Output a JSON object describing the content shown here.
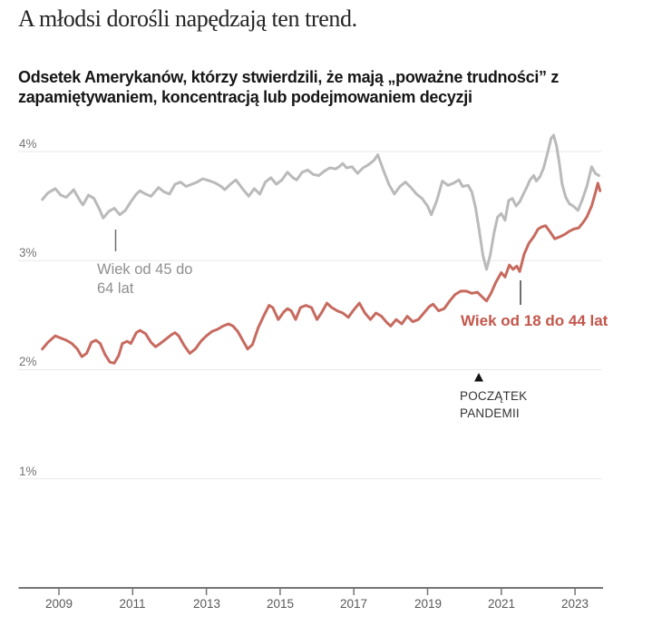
{
  "chart_data": {
    "type": "line",
    "title": "A młodsi dorośli napędzają ten trend.",
    "subtitle": "Odsetek Amerykanów, którzy stwierdzili, że mają „poważne trudności” z zapamiętywaniem, koncentracją lub podejmowaniem decyzji",
    "y_axis": {
      "unit": "%",
      "range": [
        0,
        4.3
      ],
      "grid": true,
      "ticks": [
        {
          "value": 4,
          "label": "4%"
        },
        {
          "value": 3,
          "label": "3%"
        },
        {
          "value": 2,
          "label": "2%"
        },
        {
          "value": 1,
          "label": "1%"
        }
      ]
    },
    "x_axis": {
      "range": [
        2008.4,
        2023.8
      ],
      "ticks": [
        {
          "value": 2009,
          "label": "2009"
        },
        {
          "value": 2011,
          "label": "2011"
        },
        {
          "value": 2013,
          "label": "2013"
        },
        {
          "value": 2015,
          "label": "2015"
        },
        {
          "value": 2017,
          "label": "2017"
        },
        {
          "value": 2019,
          "label": "2019"
        },
        {
          "value": 2021,
          "label": "2021"
        },
        {
          "value": 2023,
          "label": "2023"
        }
      ]
    },
    "colors": {
      "series_45_64": "#bababa",
      "series_18_44": "#c76a5f",
      "label_45_64": "#8f8f8f",
      "label_18_44": "#c2574c",
      "grid": "#e9e9e9",
      "axis": "#757575",
      "annotation": "#333333"
    },
    "series": [
      {
        "name": "Wiek od 45 do 64 lat",
        "color": "#bababa",
        "points": [
          [
            2008.55,
            3.56
          ],
          [
            2008.7,
            3.62
          ],
          [
            2008.9,
            3.66
          ],
          [
            2009.05,
            3.6
          ],
          [
            2009.2,
            3.58
          ],
          [
            2009.4,
            3.65
          ],
          [
            2009.55,
            3.56
          ],
          [
            2009.65,
            3.51
          ],
          [
            2009.8,
            3.6
          ],
          [
            2009.95,
            3.57
          ],
          [
            2010.1,
            3.47
          ],
          [
            2010.2,
            3.39
          ],
          [
            2010.35,
            3.45
          ],
          [
            2010.5,
            3.48
          ],
          [
            2010.65,
            3.42
          ],
          [
            2010.8,
            3.46
          ],
          [
            2010.95,
            3.54
          ],
          [
            2011.1,
            3.61
          ],
          [
            2011.2,
            3.64
          ],
          [
            2011.35,
            3.61
          ],
          [
            2011.5,
            3.59
          ],
          [
            2011.7,
            3.67
          ],
          [
            2011.85,
            3.63
          ],
          [
            2012.0,
            3.61
          ],
          [
            2012.15,
            3.7
          ],
          [
            2012.3,
            3.72
          ],
          [
            2012.45,
            3.68
          ],
          [
            2012.6,
            3.7
          ],
          [
            2012.75,
            3.72
          ],
          [
            2012.9,
            3.75
          ],
          [
            2013.1,
            3.73
          ],
          [
            2013.25,
            3.71
          ],
          [
            2013.4,
            3.68
          ],
          [
            2013.5,
            3.65
          ],
          [
            2013.65,
            3.7
          ],
          [
            2013.8,
            3.74
          ],
          [
            2014.0,
            3.65
          ],
          [
            2014.15,
            3.59
          ],
          [
            2014.3,
            3.66
          ],
          [
            2014.45,
            3.61
          ],
          [
            2014.6,
            3.72
          ],
          [
            2014.75,
            3.76
          ],
          [
            2014.9,
            3.7
          ],
          [
            2015.05,
            3.74
          ],
          [
            2015.2,
            3.81
          ],
          [
            2015.35,
            3.76
          ],
          [
            2015.45,
            3.74
          ],
          [
            2015.6,
            3.81
          ],
          [
            2015.75,
            3.83
          ],
          [
            2015.9,
            3.79
          ],
          [
            2016.05,
            3.78
          ],
          [
            2016.2,
            3.82
          ],
          [
            2016.35,
            3.85
          ],
          [
            2016.5,
            3.84
          ],
          [
            2016.6,
            3.86
          ],
          [
            2016.7,
            3.89
          ],
          [
            2016.8,
            3.85
          ],
          [
            2016.95,
            3.86
          ],
          [
            2017.1,
            3.8
          ],
          [
            2017.25,
            3.85
          ],
          [
            2017.4,
            3.88
          ],
          [
            2017.55,
            3.92
          ],
          [
            2017.65,
            3.97
          ],
          [
            2017.8,
            3.83
          ],
          [
            2017.95,
            3.7
          ],
          [
            2018.1,
            3.61
          ],
          [
            2018.25,
            3.68
          ],
          [
            2018.4,
            3.72
          ],
          [
            2018.55,
            3.67
          ],
          [
            2018.7,
            3.61
          ],
          [
            2018.85,
            3.57
          ],
          [
            2019.0,
            3.5
          ],
          [
            2019.1,
            3.42
          ],
          [
            2019.25,
            3.55
          ],
          [
            2019.4,
            3.73
          ],
          [
            2019.55,
            3.69
          ],
          [
            2019.7,
            3.71
          ],
          [
            2019.85,
            3.74
          ],
          [
            2019.95,
            3.68
          ],
          [
            2020.1,
            3.69
          ],
          [
            2020.2,
            3.63
          ],
          [
            2020.3,
            3.49
          ],
          [
            2020.4,
            3.28
          ],
          [
            2020.5,
            3.05
          ],
          [
            2020.6,
            2.92
          ],
          [
            2020.7,
            3.05
          ],
          [
            2020.8,
            3.25
          ],
          [
            2020.9,
            3.4
          ],
          [
            2021.0,
            3.43
          ],
          [
            2021.1,
            3.37
          ],
          [
            2021.2,
            3.55
          ],
          [
            2021.3,
            3.57
          ],
          [
            2021.4,
            3.5
          ],
          [
            2021.5,
            3.54
          ],
          [
            2021.6,
            3.61
          ],
          [
            2021.7,
            3.68
          ],
          [
            2021.78,
            3.74
          ],
          [
            2021.88,
            3.78
          ],
          [
            2021.95,
            3.73
          ],
          [
            2022.05,
            3.77
          ],
          [
            2022.15,
            3.85
          ],
          [
            2022.25,
            3.98
          ],
          [
            2022.35,
            4.12
          ],
          [
            2022.42,
            4.15
          ],
          [
            2022.5,
            4.05
          ],
          [
            2022.58,
            3.88
          ],
          [
            2022.65,
            3.7
          ],
          [
            2022.75,
            3.58
          ],
          [
            2022.85,
            3.52
          ],
          [
            2022.95,
            3.5
          ],
          [
            2023.08,
            3.46
          ],
          [
            2023.2,
            3.56
          ],
          [
            2023.32,
            3.68
          ],
          [
            2023.45,
            3.86
          ],
          [
            2023.55,
            3.8
          ],
          [
            2023.65,
            3.78
          ]
        ]
      },
      {
        "name": "Wiek od 18 do 44 lat",
        "color": "#c76a5f",
        "points": [
          [
            2008.55,
            2.19
          ],
          [
            2008.7,
            2.25
          ],
          [
            2008.9,
            2.31
          ],
          [
            2009.05,
            2.29
          ],
          [
            2009.2,
            2.27
          ],
          [
            2009.35,
            2.24
          ],
          [
            2009.5,
            2.19
          ],
          [
            2009.62,
            2.12
          ],
          [
            2009.75,
            2.15
          ],
          [
            2009.88,
            2.25
          ],
          [
            2010.0,
            2.27
          ],
          [
            2010.12,
            2.24
          ],
          [
            2010.25,
            2.14
          ],
          [
            2010.38,
            2.07
          ],
          [
            2010.5,
            2.06
          ],
          [
            2010.62,
            2.13
          ],
          [
            2010.72,
            2.24
          ],
          [
            2010.85,
            2.26
          ],
          [
            2010.95,
            2.24
          ],
          [
            2011.1,
            2.34
          ],
          [
            2011.2,
            2.36
          ],
          [
            2011.35,
            2.33
          ],
          [
            2011.5,
            2.25
          ],
          [
            2011.62,
            2.21
          ],
          [
            2011.75,
            2.24
          ],
          [
            2011.9,
            2.28
          ],
          [
            2012.05,
            2.32
          ],
          [
            2012.15,
            2.34
          ],
          [
            2012.25,
            2.31
          ],
          [
            2012.4,
            2.22
          ],
          [
            2012.55,
            2.15
          ],
          [
            2012.7,
            2.19
          ],
          [
            2012.85,
            2.26
          ],
          [
            2013.0,
            2.31
          ],
          [
            2013.15,
            2.35
          ],
          [
            2013.3,
            2.37
          ],
          [
            2013.45,
            2.4
          ],
          [
            2013.6,
            2.42
          ],
          [
            2013.72,
            2.4
          ],
          [
            2013.85,
            2.35
          ],
          [
            2014.0,
            2.26
          ],
          [
            2014.12,
            2.19
          ],
          [
            2014.25,
            2.23
          ],
          [
            2014.4,
            2.38
          ],
          [
            2014.55,
            2.49
          ],
          [
            2014.7,
            2.59
          ],
          [
            2014.8,
            2.57
          ],
          [
            2014.95,
            2.46
          ],
          [
            2015.1,
            2.53
          ],
          [
            2015.2,
            2.56
          ],
          [
            2015.3,
            2.54
          ],
          [
            2015.42,
            2.46
          ],
          [
            2015.55,
            2.57
          ],
          [
            2015.7,
            2.59
          ],
          [
            2015.85,
            2.57
          ],
          [
            2016.0,
            2.46
          ],
          [
            2016.12,
            2.52
          ],
          [
            2016.27,
            2.61
          ],
          [
            2016.4,
            2.57
          ],
          [
            2016.55,
            2.54
          ],
          [
            2016.7,
            2.52
          ],
          [
            2016.85,
            2.48
          ],
          [
            2017.0,
            2.55
          ],
          [
            2017.15,
            2.61
          ],
          [
            2017.3,
            2.52
          ],
          [
            2017.45,
            2.46
          ],
          [
            2017.6,
            2.52
          ],
          [
            2017.75,
            2.49
          ],
          [
            2017.9,
            2.43
          ],
          [
            2018.0,
            2.4
          ],
          [
            2018.15,
            2.46
          ],
          [
            2018.3,
            2.42
          ],
          [
            2018.45,
            2.49
          ],
          [
            2018.6,
            2.44
          ],
          [
            2018.75,
            2.46
          ],
          [
            2018.9,
            2.52
          ],
          [
            2019.05,
            2.58
          ],
          [
            2019.15,
            2.6
          ],
          [
            2019.3,
            2.54
          ],
          [
            2019.45,
            2.56
          ],
          [
            2019.6,
            2.63
          ],
          [
            2019.75,
            2.69
          ],
          [
            2019.9,
            2.72
          ],
          [
            2020.05,
            2.72
          ],
          [
            2020.2,
            2.7
          ],
          [
            2020.35,
            2.71
          ],
          [
            2020.5,
            2.66
          ],
          [
            2020.6,
            2.63
          ],
          [
            2020.72,
            2.7
          ],
          [
            2020.85,
            2.8
          ],
          [
            2021.0,
            2.89
          ],
          [
            2021.1,
            2.85
          ],
          [
            2021.22,
            2.96
          ],
          [
            2021.32,
            2.92
          ],
          [
            2021.42,
            2.95
          ],
          [
            2021.5,
            2.9
          ],
          [
            2021.62,
            3.06
          ],
          [
            2021.75,
            3.16
          ],
          [
            2021.88,
            3.22
          ],
          [
            2022.0,
            3.29
          ],
          [
            2022.1,
            3.31
          ],
          [
            2022.2,
            3.32
          ],
          [
            2022.33,
            3.26
          ],
          [
            2022.45,
            3.2
          ],
          [
            2022.6,
            3.22
          ],
          [
            2022.72,
            3.24
          ],
          [
            2022.85,
            3.27
          ],
          [
            2022.97,
            3.29
          ],
          [
            2023.1,
            3.3
          ],
          [
            2023.22,
            3.35
          ],
          [
            2023.32,
            3.4
          ],
          [
            2023.45,
            3.5
          ],
          [
            2023.55,
            3.62
          ],
          [
            2023.62,
            3.71
          ],
          [
            2023.68,
            3.64
          ]
        ]
      }
    ],
    "annotations": {
      "series_45_64_label_line1": "Wiek od 45 do",
      "series_45_64_label_line2": "64 lat",
      "series_18_44_label": "Wiek od 18 do 44 lat",
      "pandemic_line1": "POCZĄTEK",
      "pandemic_line2": "PANDEMII"
    },
    "legend_position": "inline-labels"
  }
}
